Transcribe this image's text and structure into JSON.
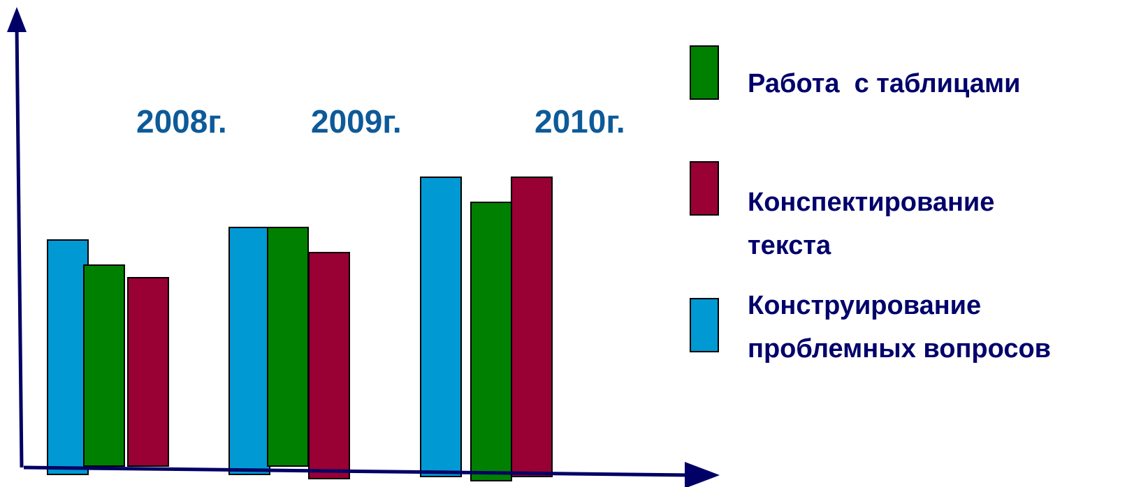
{
  "chart_data": {
    "type": "bar",
    "categories": [
      "2008г.",
      "2009г.",
      "2010г."
    ],
    "series": [
      {
        "name": "Конструирование проблемных вопросов",
        "color": "#0099d4",
        "values": [
          36,
          38,
          46
        ]
      },
      {
        "name": "Работа  с таблицами",
        "color": "#008000",
        "values": [
          32,
          38,
          42
        ]
      },
      {
        "name": "Конспектирование текста",
        "color": "#990033",
        "values": [
          30,
          34,
          46
        ]
      }
    ],
    "legend_order": [
      1,
      2,
      0
    ],
    "legend_lines": [
      [
        "Работа  с таблицами"
      ],
      [
        "Конспектирование",
        "текста"
      ],
      [
        "Конструирование",
        "проблемных вопросов"
      ]
    ],
    "ylim": [
      0,
      64
    ],
    "axis_color": "#000066",
    "label_color": "#0d5a99",
    "legend_text_color": "#00006b",
    "grid": false,
    "legend_position": "right"
  }
}
